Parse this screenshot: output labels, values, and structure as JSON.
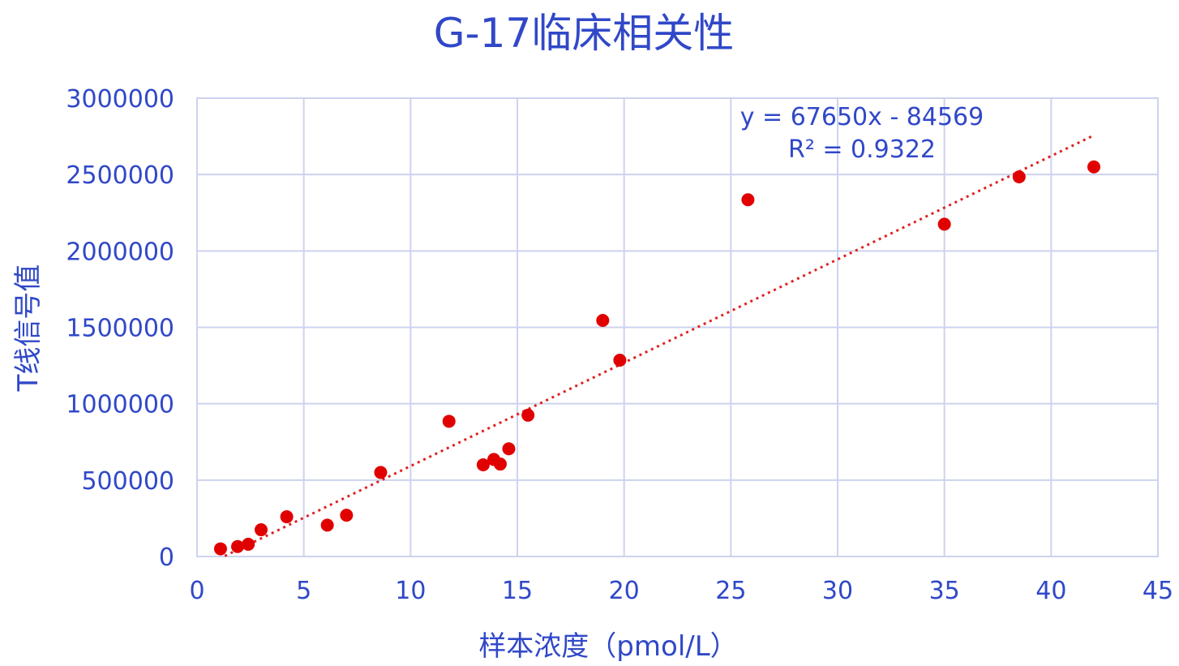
{
  "chart_data": {
    "type": "scatter",
    "title": "G-17临床相关性",
    "xlabel": "样本浓度（pmol/L）",
    "ylabel": "T线信号值",
    "xlim": [
      0,
      45
    ],
    "ylim": [
      0,
      3000000
    ],
    "x_ticks": [
      0,
      5,
      10,
      15,
      20,
      25,
      30,
      35,
      40,
      45
    ],
    "y_ticks": [
      0,
      500000,
      1000000,
      1500000,
      2000000,
      2500000,
      3000000
    ],
    "x_tick_labels": [
      "0",
      "5",
      "10",
      "15",
      "20",
      "25",
      "30",
      "35",
      "40",
      "45"
    ],
    "y_tick_labels": [
      "0",
      "500000",
      "1000000",
      "1500000",
      "2000000",
      "2500000",
      "3000000"
    ],
    "grid": true,
    "legend": "none",
    "marker_color": "#e00000",
    "trendline_color": "#e02020",
    "series": [
      {
        "points": [
          {
            "x": 1.1,
            "y": 50000
          },
          {
            "x": 1.9,
            "y": 65000
          },
          {
            "x": 2.4,
            "y": 80000
          },
          {
            "x": 3.0,
            "y": 175000
          },
          {
            "x": 4.2,
            "y": 260000
          },
          {
            "x": 6.1,
            "y": 205000
          },
          {
            "x": 7.0,
            "y": 270000
          },
          {
            "x": 8.6,
            "y": 550000
          },
          {
            "x": 11.8,
            "y": 885000
          },
          {
            "x": 13.4,
            "y": 600000
          },
          {
            "x": 13.9,
            "y": 635000
          },
          {
            "x": 14.2,
            "y": 605000
          },
          {
            "x": 14.6,
            "y": 705000
          },
          {
            "x": 15.5,
            "y": 925000
          },
          {
            "x": 19.0,
            "y": 1545000
          },
          {
            "x": 19.8,
            "y": 1285000
          },
          {
            "x": 25.8,
            "y": 2335000
          },
          {
            "x": 35.0,
            "y": 2175000
          },
          {
            "x": 38.5,
            "y": 2485000
          },
          {
            "x": 42.0,
            "y": 2550000
          }
        ]
      }
    ],
    "trendline": {
      "type": "linear",
      "slope": 67650,
      "intercept": -84569,
      "x_range": [
        1.3,
        41.9
      ],
      "equation_label": "y = 67650x - 84569",
      "r2_label": "R² = 0.9322"
    }
  }
}
